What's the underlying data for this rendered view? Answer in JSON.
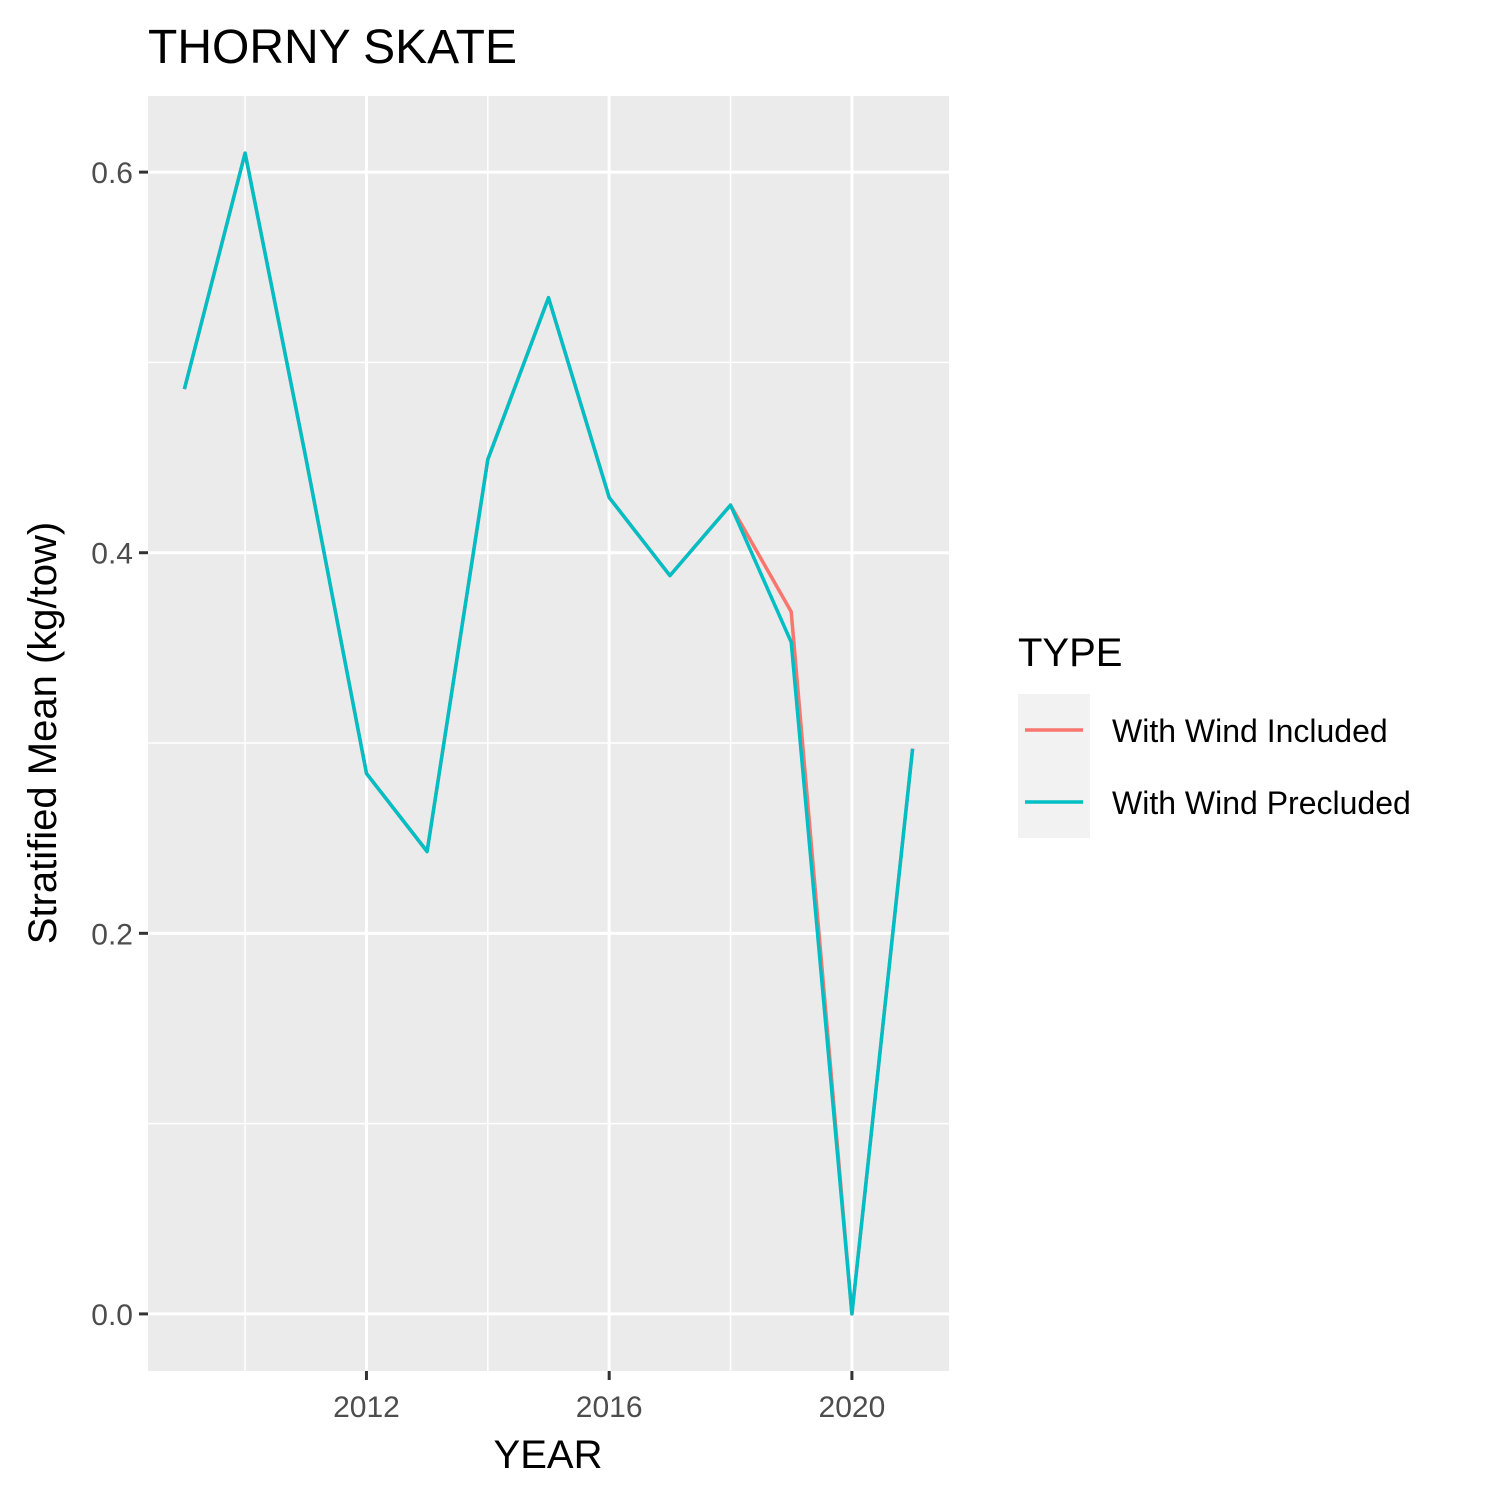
{
  "chart_data": {
    "type": "line",
    "title": "THORNY SKATE",
    "xlabel": "YEAR",
    "ylabel": "Stratified Mean (kg/tow)",
    "xlim": [
      2008.4,
      2021.6
    ],
    "ylim": [
      -0.03,
      0.64
    ],
    "xticks": [
      2012,
      2016,
      2020
    ],
    "xtick_labels": [
      "2012",
      "2016",
      "2020"
    ],
    "xminor": [
      2010,
      2014,
      2018
    ],
    "yticks": [
      0.0,
      0.2,
      0.4,
      0.6
    ],
    "ytick_labels": [
      "0.0",
      "0.2",
      "0.4",
      "0.6"
    ],
    "yminor": [
      0.1,
      0.3,
      0.5
    ],
    "grid": true,
    "legend": {
      "title": "TYPE",
      "position": "right"
    },
    "x": [
      2009,
      2010,
      2011,
      2012,
      2013,
      2014,
      2015,
      2016,
      2017,
      2018,
      2019,
      2020,
      2021
    ],
    "series": [
      {
        "name": "With Wind Included",
        "color": "#F8766D",
        "values": [
          0.486,
          0.61,
          0.45,
          0.284,
          0.243,
          0.449,
          0.534,
          0.429,
          0.388,
          0.425,
          0.369,
          0.0,
          0.297
        ]
      },
      {
        "name": "With Wind Precluded",
        "color": "#00BFC4",
        "values": [
          0.486,
          0.61,
          0.45,
          0.284,
          0.243,
          0.449,
          0.534,
          0.429,
          0.388,
          0.425,
          0.353,
          0.0,
          0.297
        ]
      }
    ]
  }
}
